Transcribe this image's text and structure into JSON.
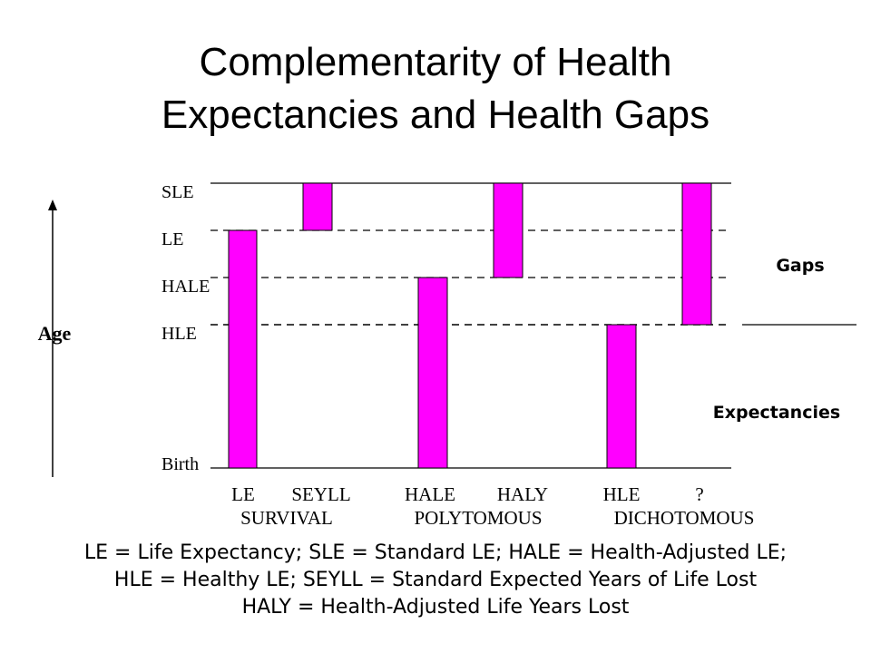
{
  "title": {
    "line1": "Complementarity of Health",
    "line2": "Expectancies and Health Gaps"
  },
  "axis": {
    "label": "Age",
    "levels": [
      "SLE",
      "LE",
      "HALE",
      "HLE",
      "Birth"
    ]
  },
  "columns": [
    {
      "label": "LE",
      "span": "bar",
      "from": "Birth",
      "to": "LE"
    },
    {
      "label": "SEYLL",
      "span": "bar",
      "from": "LE",
      "to": "SLE"
    },
    {
      "label": "HALE",
      "span": "bar",
      "from": "Birth",
      "to": "HALE"
    },
    {
      "label": "HALY",
      "span": "bar",
      "from": "HALE",
      "to": "SLE"
    },
    {
      "label": "HLE",
      "span": "bar",
      "from": "Birth",
      "to": "HLE"
    },
    {
      "label": "?",
      "span": "bar",
      "from": "HLE",
      "to": "SLE"
    }
  ],
  "groups": [
    "SURVIVAL",
    "POLYTOMOUS",
    "DICHOTOMOUS"
  ],
  "side_labels": {
    "gaps": "Gaps",
    "expectancies": "Expectancies"
  },
  "colors": {
    "bar": "#ff00ff"
  },
  "footer": {
    "line1": "LE = Life Expectancy;  SLE = Standard LE; HALE = Health-Adjusted LE;",
    "line2": "HLE = Healthy LE; SEYLL = Standard Expected Years of Life Lost",
    "line3": "HALY = Health-Adjusted Life Years Lost"
  }
}
